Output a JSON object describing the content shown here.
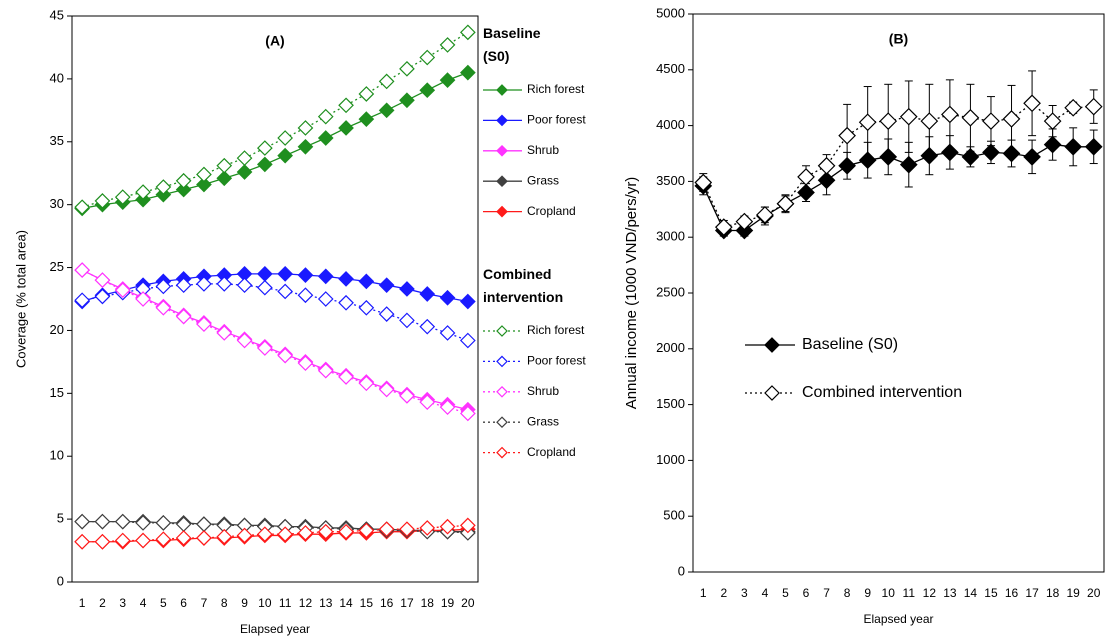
{
  "chart_data": [
    {
      "type": "line",
      "title": "(A)",
      "x_label": "Elapsed year",
      "y_label": "Coverage (% total area)",
      "categories": [
        "1",
        "2",
        "3",
        "4",
        "5",
        "6",
        "7",
        "8",
        "9",
        "10",
        "11",
        "12",
        "13",
        "14",
        "15",
        "16",
        "17",
        "18",
        "19",
        "20"
      ],
      "ylim": [
        0,
        45
      ],
      "yticks": [
        0,
        5,
        10,
        15,
        20,
        25,
        30,
        35,
        40,
        45
      ],
      "groups": [
        {
          "title": "Baseline (S0)",
          "marker": "filled",
          "dashed": false,
          "series": [
            {
              "name": "Rich forest",
              "color": "#1f8f1f",
              "values": [
                29.7,
                30.0,
                30.2,
                30.4,
                30.8,
                31.2,
                31.6,
                32.1,
                32.6,
                33.2,
                33.9,
                34.6,
                35.3,
                36.1,
                36.8,
                37.5,
                38.3,
                39.1,
                39.9,
                40.5
              ]
            },
            {
              "name": "Poor forest",
              "color": "#1a1aff",
              "values": [
                22.3,
                22.8,
                23.2,
                23.6,
                23.9,
                24.1,
                24.3,
                24.4,
                24.5,
                24.5,
                24.5,
                24.4,
                24.3,
                24.1,
                23.9,
                23.6,
                23.3,
                22.9,
                22.6,
                22.3
              ]
            },
            {
              "name": "Shrub",
              "color": "#ff33ff",
              "values": [
                24.8,
                24.0,
                23.3,
                22.6,
                21.9,
                21.2,
                20.6,
                19.9,
                19.3,
                18.7,
                18.1,
                17.5,
                16.9,
                16.4,
                15.9,
                15.4,
                14.9,
                14.5,
                14.1,
                13.7
              ]
            },
            {
              "name": "Grass",
              "color": "#404040",
              "values": [
                4.8,
                4.8,
                4.8,
                4.8,
                4.7,
                4.7,
                4.6,
                4.6,
                4.5,
                4.5,
                4.4,
                4.4,
                4.3,
                4.3,
                4.2,
                4.2,
                4.1,
                4.1,
                4.0,
                4.0
              ]
            },
            {
              "name": "Cropland",
              "color": "#ff1a1a",
              "values": [
                3.2,
                3.2,
                3.2,
                3.3,
                3.3,
                3.4,
                3.5,
                3.5,
                3.6,
                3.7,
                3.7,
                3.8,
                3.8,
                3.9,
                3.9,
                4.0,
                4.0,
                4.1,
                4.1,
                4.2
              ]
            }
          ]
        },
        {
          "title": "Combined intervention",
          "marker": "open",
          "dashed": true,
          "series": [
            {
              "name": "Rich forest",
              "color": "#1f8f1f",
              "values": [
                29.8,
                30.3,
                30.6,
                31.0,
                31.4,
                31.9,
                32.4,
                33.1,
                33.7,
                34.5,
                35.3,
                36.1,
                37.0,
                37.9,
                38.8,
                39.8,
                40.8,
                41.7,
                42.7,
                43.7
              ]
            },
            {
              "name": "Poor forest",
              "color": "#1a1aff",
              "values": [
                22.4,
                22.7,
                23.0,
                23.3,
                23.5,
                23.6,
                23.7,
                23.7,
                23.6,
                23.4,
                23.1,
                22.8,
                22.5,
                22.2,
                21.8,
                21.3,
                20.8,
                20.3,
                19.8,
                19.2
              ]
            },
            {
              "name": "Shrub",
              "color": "#ff33ff",
              "values": [
                24.8,
                24.0,
                23.2,
                22.5,
                21.8,
                21.1,
                20.5,
                19.8,
                19.2,
                18.6,
                18.0,
                17.4,
                16.8,
                16.3,
                15.8,
                15.3,
                14.8,
                14.3,
                13.9,
                13.4
              ]
            },
            {
              "name": "Grass",
              "color": "#404040",
              "values": [
                4.8,
                4.8,
                4.8,
                4.7,
                4.7,
                4.6,
                4.6,
                4.5,
                4.5,
                4.4,
                4.4,
                4.3,
                4.3,
                4.2,
                4.2,
                4.1,
                4.1,
                4.0,
                4.0,
                3.9
              ]
            },
            {
              "name": "Cropland",
              "color": "#ff1a1a",
              "values": [
                3.2,
                3.2,
                3.3,
                3.3,
                3.4,
                3.5,
                3.5,
                3.6,
                3.7,
                3.8,
                3.8,
                3.9,
                4.0,
                4.0,
                4.1,
                4.2,
                4.2,
                4.3,
                4.4,
                4.5
              ]
            }
          ]
        }
      ]
    },
    {
      "type": "line",
      "title": "(B)",
      "x_label": "Elapsed year",
      "y_label": "Annual income (1000 VND/pers/yr)",
      "categories": [
        "1",
        "2",
        "3",
        "4",
        "5",
        "6",
        "7",
        "8",
        "9",
        "10",
        "11",
        "12",
        "13",
        "14",
        "15",
        "16",
        "17",
        "18",
        "19",
        "20"
      ],
      "ylim": [
        0,
        5000
      ],
      "yticks": [
        0,
        500,
        1000,
        1500,
        2000,
        2500,
        3000,
        3500,
        4000,
        4500,
        5000
      ],
      "series": [
        {
          "name": "Baseline (S0)",
          "color": "#000000",
          "marker": "filled",
          "dashed": false,
          "values": [
            3460,
            3060,
            3060,
            3190,
            3300,
            3400,
            3510,
            3640,
            3690,
            3720,
            3650,
            3730,
            3760,
            3720,
            3760,
            3750,
            3720,
            3830,
            3810,
            3810
          ],
          "errors": [
            80,
            50,
            50,
            80,
            70,
            80,
            130,
            120,
            160,
            160,
            200,
            170,
            150,
            90,
            100,
            120,
            150,
            140,
            170,
            150
          ]
        },
        {
          "name": "Combined intervention",
          "color": "#000000",
          "marker": "open",
          "dashed": true,
          "values": [
            3490,
            3090,
            3140,
            3200,
            3300,
            3540,
            3640,
            3910,
            4030,
            4040,
            4080,
            4040,
            4100,
            4070,
            4040,
            4060,
            4200,
            4040,
            4160,
            4170
          ],
          "errors": [
            80,
            60,
            50,
            70,
            80,
            100,
            100,
            280,
            320,
            330,
            320,
            330,
            310,
            300,
            220,
            300,
            290,
            140,
            50,
            150
          ]
        }
      ]
    }
  ]
}
